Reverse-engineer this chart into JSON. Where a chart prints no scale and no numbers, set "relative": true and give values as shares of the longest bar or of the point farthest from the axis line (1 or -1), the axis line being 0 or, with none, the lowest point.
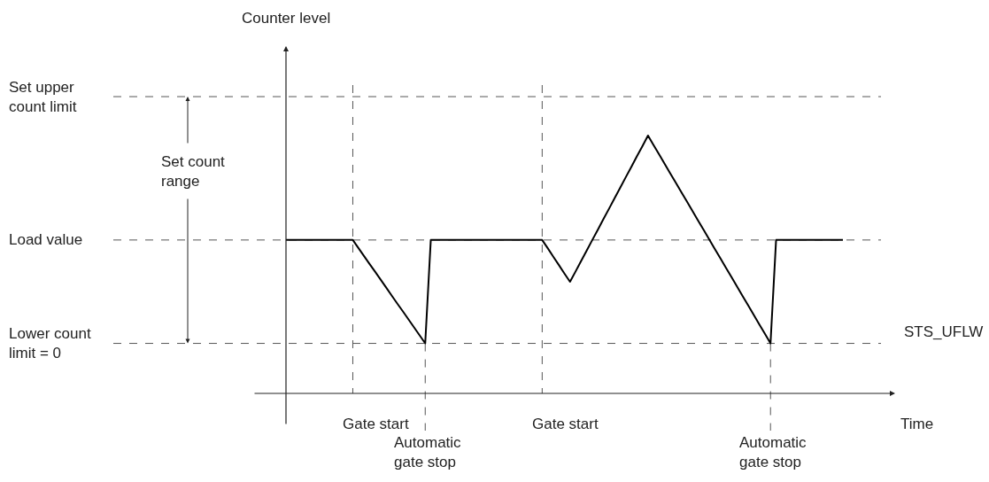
{
  "chart_data": {
    "type": "line",
    "relative": true,
    "xlabel": "Time",
    "line_style": "solid",
    "marker": "none",
    "categories": [
      null,
      null,
      null,
      null,
      null,
      null,
      null,
      null,
      null,
      null,
      null,
      null,
      null,
      null,
      null,
      null,
      null,
      null,
      null,
      null,
      null,
      null,
      null,
      null,
      null,
      null,
      null,
      null,
      null,
      null,
      null,
      null,
      null,
      null,
      null,
      null,
      null,
      null,
      null,
      null,
      null,
      null,
      null,
      null,
      null,
      null,
      null,
      null,
      null,
      null,
      null,
      null,
      null,
      null,
      null,
      null,
      null,
      null,
      null,
      null,
      null,
      null,
      null,
      null,
      null,
      null,
      null,
      null,
      null,
      null,
      null,
      null,
      null,
      null,
      null,
      null,
      null,
      null,
      null,
      null,
      null,
      null,
      null,
      null,
      null,
      null,
      null,
      null,
      null,
      null,
      null,
      null,
      null,
      null,
      null,
      null,
      null,
      null,
      null,
      null,
      null
    ],
    "series": [
      {
        "color": "#000000",
        "values": [
          0.595,
          0.595,
          0.595,
          0.595,
          0.595,
          0.595,
          0.595,
          0.595,
          0.595,
          0.595,
          0.595,
          0.595,
          0.595,
          0.564,
          0.533,
          0.502,
          0.472,
          0.441,
          0.41,
          0.379,
          0.348,
          0.318,
          0.287,
          0.256,
          0.225,
          0.194,
          0.595,
          0.595,
          0.595,
          0.595,
          0.595,
          0.595,
          0.595,
          0.595,
          0.595,
          0.595,
          0.595,
          0.595,
          0.595,
          0.595,
          0.595,
          0.595,
          0.595,
          0.595,
          0.595,
          0.595,
          0.595,
          0.563,
          0.53,
          0.498,
          0.465,
          0.433,
          0.473,
          0.514,
          0.554,
          0.595,
          0.635,
          0.676,
          0.716,
          0.757,
          0.797,
          0.838,
          0.878,
          0.919,
          0.959,
          1,
          0.963,
          0.927,
          0.89,
          0.853,
          0.817,
          0.78,
          0.744,
          0.707,
          0.67,
          0.634,
          0.597,
          0.56,
          0.524,
          0.487,
          0.451,
          0.414,
          0.377,
          0.341,
          0.304,
          0.267,
          0.231,
          0.194,
          0.595,
          0.595,
          0.595,
          0.595,
          0.595,
          0.595,
          0.595,
          0.595,
          0.595,
          0.595,
          0.595,
          0.595,
          0.595
        ]
      }
    ],
    "ref_lines": [
      {
        "axis": "y",
        "value": 1.151,
        "label": "Set upper\ncount limit",
        "color": "#555555",
        "line_style": "dashed"
      },
      {
        "axis": "y",
        "value": 0.595,
        "label": "Load value",
        "color": "#555555",
        "line_style": "dashed"
      },
      {
        "axis": "y",
        "value": 0.194,
        "label": "Lower count\nlimit = 0",
        "color": "#555555",
        "line_style": "dashed"
      }
    ],
    "annotations": [
      "Counter level",
      "Set count\nrange",
      "Gate start",
      "Automatic\ngate stop",
      "Gate start",
      "Automatic\ngate stop",
      "STS_UFLW"
    ]
  }
}
